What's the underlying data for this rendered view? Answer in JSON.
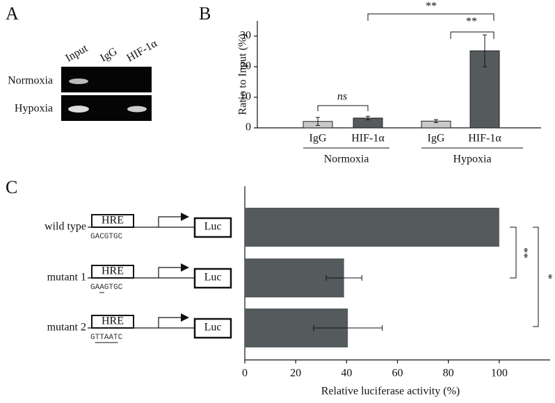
{
  "panel_labels": [
    "A",
    "B",
    "C"
  ],
  "gel": {
    "lanes": [
      "Input",
      "IgG",
      "HIF-1α"
    ],
    "rows": [
      "Normoxia",
      "Hypoxia"
    ]
  },
  "constructs": [
    {
      "element": "HRE",
      "reporter": "Luc",
      "sequence": "GACGTGC"
    },
    {
      "element": "HRE",
      "reporter": "Luc",
      "sequence": "GAAGTGC"
    },
    {
      "element": "HRE",
      "reporter": "Luc",
      "sequence": "GTTAATC"
    }
  ],
  "chart_data": [
    {
      "type": "bar",
      "ylabel": "Ratio to Input (%)",
      "categories": [
        "IgG",
        "HIF-1α",
        "IgG",
        "HIF-1α"
      ],
      "groups": [
        "Normoxia",
        "Hypoxia"
      ],
      "values": [
        2.1,
        3.2,
        2.2,
        25.2
      ],
      "errors": [
        1.3,
        0.6,
        0.5,
        5.2
      ],
      "colors": [
        "#c8c8c8",
        "#555a5c",
        "#c8c8c8",
        "#555a5c"
      ],
      "ylim": [
        0,
        35
      ],
      "yticks": [
        0,
        10,
        20,
        30
      ],
      "annotations": [
        "ns",
        "**",
        "**"
      ]
    },
    {
      "type": "hbar",
      "xlabel": "Relative luciferase activity (%)",
      "categories": [
        "wild type",
        "mutant 1",
        "mutant 2"
      ],
      "values": [
        100,
        39,
        40.5
      ],
      "errors": [
        null,
        7,
        13.5
      ],
      "color": "#555a5c",
      "xlim": [
        0,
        120
      ],
      "xticks": [
        0,
        20,
        40,
        60,
        80,
        100
      ],
      "annotations": [
        "**",
        "*"
      ]
    }
  ]
}
